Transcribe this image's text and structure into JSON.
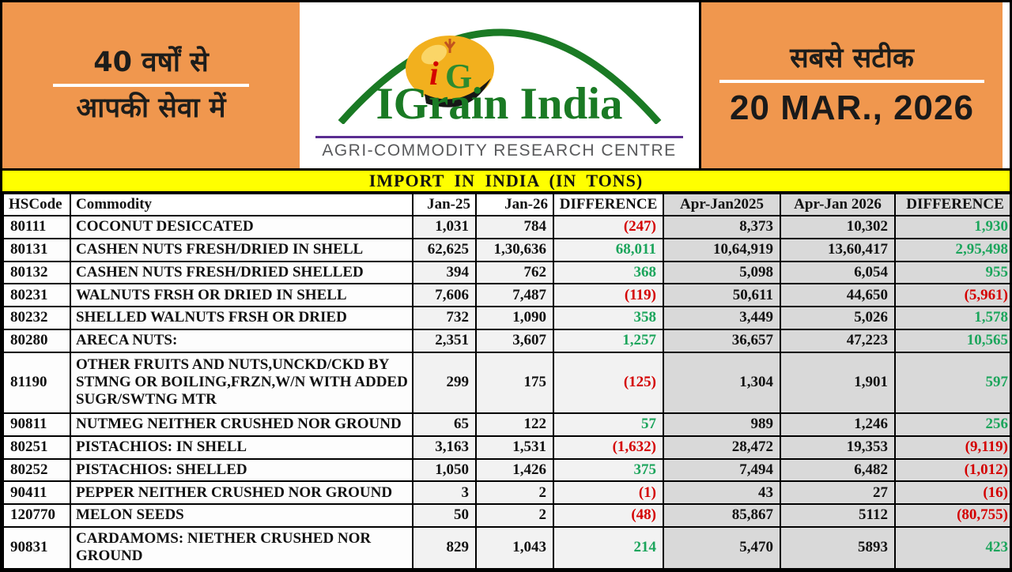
{
  "colors": {
    "orange_banner": "#F0974E",
    "yellow_title": "#FFFF00",
    "positive_green": "#1CA55C",
    "negative_red": "#D40000",
    "brand_green": "#1A7A24",
    "logo_gold": "#F2B01E",
    "purple_rule": "#5A2D91",
    "light_cell": "#F2F2F2",
    "gray_cell": "#D9D9D9",
    "tagline_gray": "#58595B"
  },
  "masthead": {
    "left": {
      "line1": "40 वर्षों से",
      "line2": "आपकी सेवा में"
    },
    "logo": {
      "monogram_i": "i",
      "monogram_g": "G",
      "brand": "IGrain India",
      "tagline": "AGRI-COMMODITY RESEARCH CENTRE"
    },
    "right": {
      "tagline": "सबसे सटीक",
      "date": "20 MAR., 2026"
    }
  },
  "table": {
    "title": "IMPORT IN INDIA (IN TONS)",
    "columns": [
      "HSCode",
      "Commodity",
      "Jan-25",
      "Jan-26",
      "DIFFERENCE",
      "Apr-Jan2025",
      "Apr-Jan 2026",
      "DIFFERENCE"
    ],
    "rows": [
      {
        "hscode": "80111",
        "commodity": "COCONUT DESICCATED",
        "jan25": "1,031",
        "jan26": "784",
        "diff1": "(247)",
        "apr_jan_2025": "8,373",
        "apr_jan_2026": "10,302",
        "diff2": "1,930"
      },
      {
        "hscode": "80131",
        "commodity": "CASHEN NUTS FRESH/DRIED IN SHELL",
        "jan25": "62,625",
        "jan26": "1,30,636",
        "diff1": "68,011",
        "apr_jan_2025": "10,64,919",
        "apr_jan_2026": "13,60,417",
        "diff2": "2,95,498"
      },
      {
        "hscode": "80132",
        "commodity": "CASHEN NUTS FRESH/DRIED SHELLED",
        "jan25": "394",
        "jan26": "762",
        "diff1": "368",
        "apr_jan_2025": "5,098",
        "apr_jan_2026": "6,054",
        "diff2": "955"
      },
      {
        "hscode": "80231",
        "commodity": "WALNUTS FRSH OR DRIED IN SHELL",
        "jan25": "7,606",
        "jan26": "7,487",
        "diff1": "(119)",
        "apr_jan_2025": "50,611",
        "apr_jan_2026": "44,650",
        "diff2": "(5,961)"
      },
      {
        "hscode": "80232",
        "commodity": "SHELLED WALNUTS FRSH OR DRIED",
        "jan25": "732",
        "jan26": "1,090",
        "diff1": "358",
        "apr_jan_2025": "3,449",
        "apr_jan_2026": "5,026",
        "diff2": "1,578"
      },
      {
        "hscode": "80280",
        "commodity": "ARECA NUTS:",
        "jan25": "2,351",
        "jan26": "3,607",
        "diff1": "1,257",
        "apr_jan_2025": "36,657",
        "apr_jan_2026": "47,223",
        "diff2": "10,565"
      },
      {
        "hscode": "81190",
        "commodity": "OTHER FRUITS AND NUTS,UNCKD/CKD BY STMNG OR BOILING,FRZN,W/N WITH ADDED SUGR/SWTNG MTR",
        "jan25": "299",
        "jan26": "175",
        "diff1": "(125)",
        "apr_jan_2025": "1,304",
        "apr_jan_2026": "1,901",
        "diff2": "597"
      },
      {
        "hscode": "90811",
        "commodity": "NUTMEG NEITHER CRUSHED NOR GROUND",
        "jan25": "65",
        "jan26": "122",
        "diff1": "57",
        "apr_jan_2025": "989",
        "apr_jan_2026": "1,246",
        "diff2": "256"
      },
      {
        "hscode": "80251",
        "commodity": "PISTACHIOS: IN SHELL",
        "jan25": "3,163",
        "jan26": "1,531",
        "diff1": "(1,632)",
        "apr_jan_2025": "28,472",
        "apr_jan_2026": "19,353",
        "diff2": "(9,119)"
      },
      {
        "hscode": "80252",
        "commodity": "PISTACHIOS: SHELLED",
        "jan25": "1,050",
        "jan26": "1,426",
        "diff1": "375",
        "apr_jan_2025": "7,494",
        "apr_jan_2026": "6,482",
        "diff2": "(1,012)"
      },
      {
        "hscode": "90411",
        "commodity": "PEPPER NEITHER CRUSHED NOR GROUND",
        "jan25": "3",
        "jan26": "2",
        "diff1": "(1)",
        "apr_jan_2025": "43",
        "apr_jan_2026": "27",
        "diff2": "(16)"
      },
      {
        "hscode": "120770",
        "commodity": "MELON SEEDS",
        "jan25": "50",
        "jan26": "2",
        "diff1": "(48)",
        "apr_jan_2025": "85,867",
        "apr_jan_2026": "5112",
        "diff2": "(80,755)"
      },
      {
        "hscode": "90831",
        "commodity": "CARDAMOMS: NIETHER CRUSHED NOR GROUND",
        "jan25": "829",
        "jan26": "1,043",
        "diff1": "214",
        "apr_jan_2025": "5,470",
        "apr_jan_2026": "5893",
        "diff2": "423"
      }
    ]
  }
}
